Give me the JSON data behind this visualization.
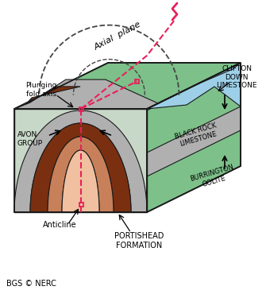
{
  "labels": {
    "axial_plane": "Axial  plane",
    "plunging_fold_axis": "Plunging\nfold axis",
    "avon_group": "AVON\nGROUP",
    "clifton_down": "CLIFTON\nDOWN\nLIMESTONE",
    "black_rock": "BLACK ROCK\nLIMESTONE",
    "burrington": "BURRINGTON\nOOLITE",
    "anticline": "Anticline",
    "portishead": "PORTISHEAD\nFORMATION",
    "bgs": "BGS © NERC"
  },
  "colors": {
    "green": "#7dc08a",
    "green_dark": "#5a9e6a",
    "blue": "#9dd0e8",
    "blue_dark": "#7ab8d8",
    "gray": "#b0b0b0",
    "gray_dark": "#909090",
    "brown_dark": "#7a3010",
    "brown_mid": "#a04020",
    "brown_light": "#c8805a",
    "peach": "#f0c0a0",
    "outline": "#1a1a1a",
    "pink": "#e8205a",
    "white": "#ffffff",
    "black": "#000000"
  }
}
